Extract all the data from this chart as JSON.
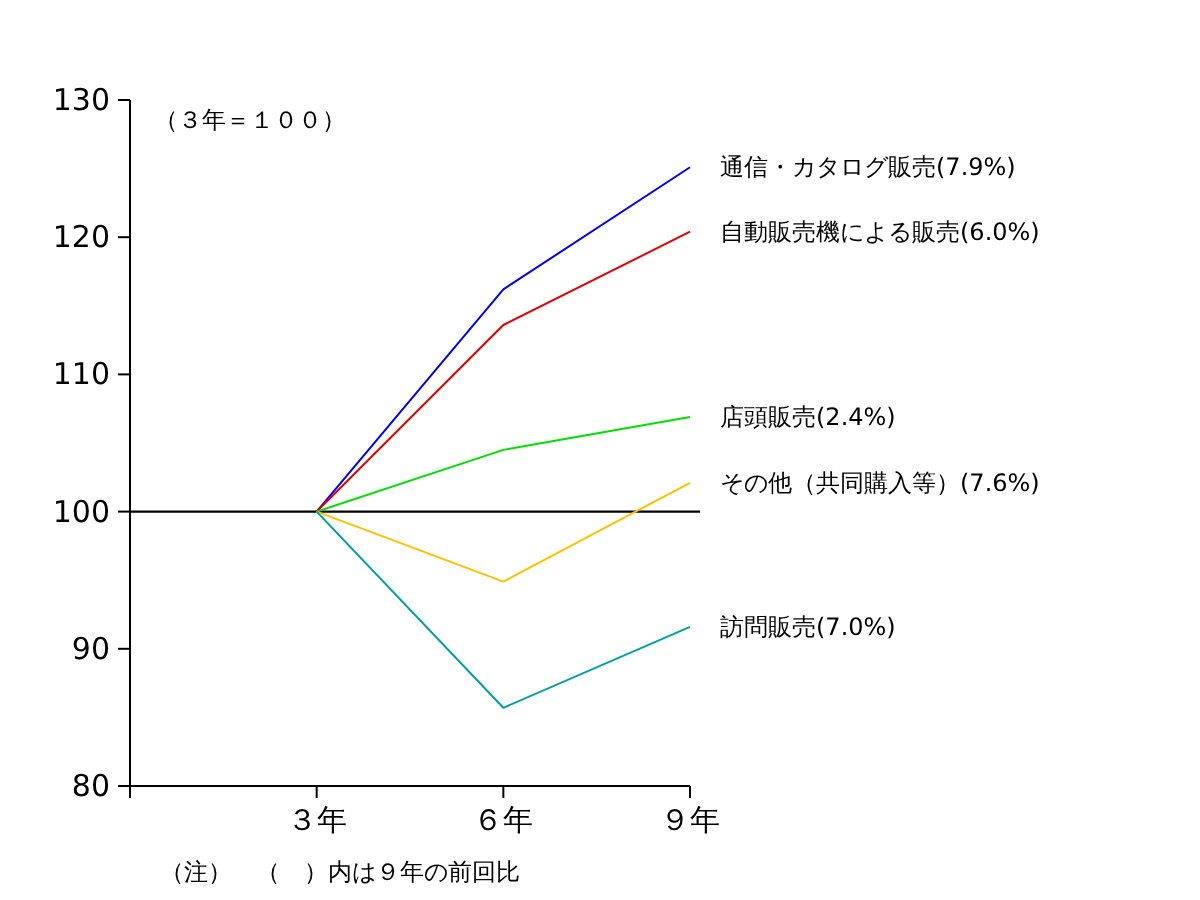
{
  "chart_data": {
    "type": "line",
    "categories": [
      null,
      "３年",
      "６年",
      "９年"
    ],
    "series": [
      {
        "name": "通信・カタログ販売(7.9%)",
        "color": "#0000ff",
        "values": [
          null,
          100,
          116.2,
          125.1
        ]
      },
      {
        "name": "自動販売機による販売(6.0%)",
        "color": "#e00000",
        "values": [
          null,
          100,
          113.6,
          120.4
        ]
      },
      {
        "name": "店頭販売(2.4%)",
        "color": "#00dd00",
        "values": [
          null,
          100,
          104.5,
          106.9
        ]
      },
      {
        "name": "その他（共同購入等）(7.6%)",
        "color": "#ffc000",
        "values": [
          null,
          100,
          94.9,
          102.1
        ]
      },
      {
        "name": "訪問販売(7.0%)",
        "color": "#00a0a0",
        "values": [
          null,
          100,
          85.7,
          91.6
        ]
      }
    ],
    "ylim": [
      80,
      130
    ],
    "yticks": [
      80,
      90,
      100,
      110,
      120,
      130
    ],
    "ref_lines": [
      {
        "axis": "y",
        "value": 100,
        "color": "#000000"
      }
    ],
    "annotations": [
      "（３年＝１００）",
      "（注）　（　）内は９年の前回比"
    ]
  }
}
